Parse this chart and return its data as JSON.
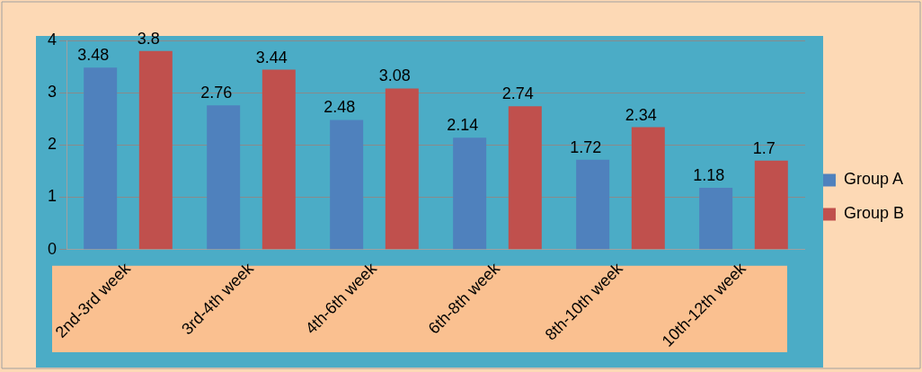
{
  "chart_data": {
    "type": "bar",
    "categories": [
      "2nd-3rd week",
      "3rd-4th week",
      "4th-6th week",
      "6th-8th week",
      "8th-10th week",
      "10th-12th week"
    ],
    "series": [
      {
        "name": "Group A",
        "color": "#4f81bd",
        "values": [
          3.48,
          2.76,
          2.48,
          2.14,
          1.72,
          1.18
        ]
      },
      {
        "name": "Group B",
        "color": "#c0504d",
        "values": [
          3.8,
          3.44,
          3.08,
          2.74,
          2.34,
          1.7
        ]
      }
    ],
    "ylim": [
      0,
      4
    ],
    "yticks": [
      0,
      1,
      2,
      3,
      4
    ],
    "grid": "y",
    "legend": "right",
    "data_labels": true
  }
}
